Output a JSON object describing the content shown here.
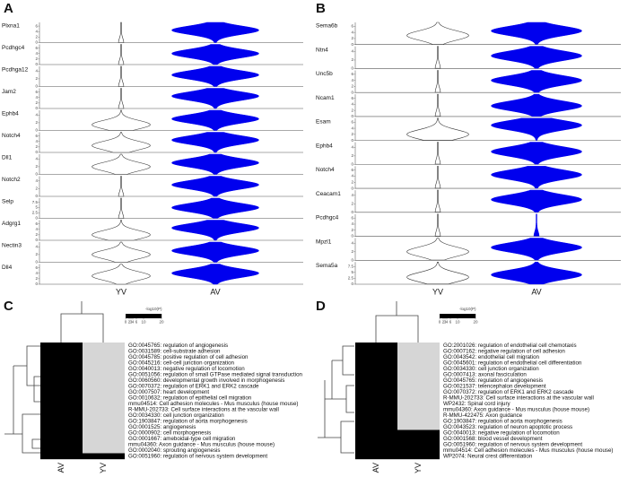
{
  "chart_data": [
    {
      "type": "violin",
      "panel": "A",
      "categories": [
        "YV",
        "AV"
      ],
      "colors": [
        "#ffffff",
        "#0000ee"
      ],
      "genes": [
        {
          "name": "Plxna1",
          "ylim": [
            0,
            7
          ],
          "yticks": [
            0,
            2,
            4,
            6
          ],
          "values": [
            0,
            4.5
          ]
        },
        {
          "name": "Pcdhgc4",
          "ylim": [
            0,
            7
          ],
          "yticks": [
            0,
            2,
            4,
            6
          ],
          "values": [
            0,
            4
          ]
        },
        {
          "name": "Pcdhga12",
          "ylim": [
            0,
            5
          ],
          "yticks": [
            0,
            2,
            4
          ],
          "values": [
            0,
            3
          ]
        },
        {
          "name": "Jam2",
          "ylim": [
            0,
            7
          ],
          "yticks": [
            0,
            2,
            4,
            6
          ],
          "values": [
            0,
            4.5
          ]
        },
        {
          "name": "Ephb4",
          "ylim": [
            0,
            5
          ],
          "yticks": [
            0,
            2,
            4
          ],
          "values": [
            1.5,
            3
          ]
        },
        {
          "name": "Notch4",
          "ylim": [
            0,
            7
          ],
          "yticks": [
            0,
            2,
            4,
            6
          ],
          "values": [
            2.5,
            4.5
          ]
        },
        {
          "name": "Dll1",
          "ylim": [
            0,
            5
          ],
          "yticks": [
            0,
            2,
            4
          ],
          "values": [
            2,
            3
          ]
        },
        {
          "name": "Notch2",
          "ylim": [
            0,
            5
          ],
          "yticks": [
            0,
            2,
            4
          ],
          "values": [
            0,
            3
          ]
        },
        {
          "name": "Selp",
          "ylim": [
            0,
            9
          ],
          "yticks": [
            0,
            2.5,
            5,
            7.5
          ],
          "values": [
            0,
            5
          ]
        },
        {
          "name": "Adgrg1",
          "ylim": [
            0,
            7
          ],
          "yticks": [
            0,
            2,
            4,
            6
          ],
          "values": [
            2,
            4.5
          ]
        },
        {
          "name": "Nectin3",
          "ylim": [
            0,
            5
          ],
          "yticks": [
            0,
            2,
            4
          ],
          "values": [
            2,
            3
          ]
        },
        {
          "name": "Dll4",
          "ylim": [
            0,
            7
          ],
          "yticks": [
            0,
            2,
            4,
            6
          ],
          "values": [
            3,
            4
          ]
        }
      ]
    },
    {
      "type": "violin",
      "panel": "B",
      "categories": [
        "YV",
        "AV"
      ],
      "colors": [
        "#ffffff",
        "#0000ee"
      ],
      "genes": [
        {
          "name": "Sema6b",
          "ylim": [
            0,
            7
          ],
          "yticks": [
            0,
            2,
            4,
            6
          ],
          "values": [
            3,
            4.5
          ]
        },
        {
          "name": "Ntn4",
          "ylim": [
            0,
            5
          ],
          "yticks": [
            0,
            2,
            4
          ],
          "values": [
            0,
            3
          ]
        },
        {
          "name": "Unc5b",
          "ylim": [
            0,
            7
          ],
          "yticks": [
            0,
            2,
            4,
            6
          ],
          "values": [
            0,
            4
          ]
        },
        {
          "name": "Ncam1",
          "ylim": [
            0,
            7
          ],
          "yticks": [
            0,
            2,
            4,
            6
          ],
          "values": [
            0,
            3.5
          ]
        },
        {
          "name": "Esam",
          "ylim": [
            0,
            7
          ],
          "yticks": [
            0,
            2,
            4,
            6
          ],
          "values": [
            2,
            5
          ]
        },
        {
          "name": "Ephb4",
          "ylim": [
            0,
            5
          ],
          "yticks": [
            0,
            2,
            4
          ],
          "values": [
            0,
            3
          ]
        },
        {
          "name": "Notch4",
          "ylim": [
            0,
            7
          ],
          "yticks": [
            0,
            2,
            4,
            6
          ],
          "values": [
            0,
            4.5
          ]
        },
        {
          "name": "Ceacam1",
          "ylim": [
            0,
            5
          ],
          "yticks": [
            0,
            2,
            4
          ],
          "values": [
            0,
            3
          ]
        },
        {
          "name": "Pcdhgc4",
          "ylim": [
            0,
            7
          ],
          "yticks": [
            0,
            2,
            4,
            6
          ],
          "values": [
            0,
            0
          ]
        },
        {
          "name": "Mpzl1",
          "ylim": [
            0,
            5
          ],
          "yticks": [
            0,
            2,
            4
          ],
          "values": [
            2,
            3
          ]
        },
        {
          "name": "Sema5a",
          "ylim": [
            0,
            9
          ],
          "yticks": [
            0,
            2.5,
            5,
            7.5
          ],
          "values": [
            3,
            4
          ]
        }
      ]
    },
    {
      "type": "heatmap",
      "panel": "C",
      "legend_title": "-log10(P)",
      "columns": [
        "AV",
        "YV"
      ],
      "clim": [
        0,
        20
      ],
      "cticks": [
        0,
        2,
        3,
        4,
        6,
        10,
        20
      ],
      "ccolors": [
        "#fffbe8",
        "#fbe7a6",
        "#f6cf72",
        "#f1b04f",
        "#e88d33",
        "#c65f1c",
        "#7a2a0a"
      ],
      "missing_color": "#d6d6d6",
      "rows": [
        "GO:0045765: regulation of angiogenesis",
        "GO:0031589: cell-substrate adhesion",
        "GO:0045785: positive regulation of cell adhesion",
        "GO:0045216: cell-cell junction organization",
        "GO:0040013: negative regulation of locomotion",
        "GO:0051056: regulation of small GTPase mediated signal transduction",
        "GO:0060560: developmental growth involved in morphogenesis",
        "GO:0070372: regulation of ERK1 and ERK2 cascade",
        "GO:0007507: heart development",
        "GO:0010632: regulation of epithelial cell migration",
        "mmu04514: Cell adhesion molecules - Mus musculus (house mouse)",
        "R-MMU-202733: Cell surface interactions at the vascular wall",
        "GO:0034330: cell junction organization",
        "GO:1903847: regulation of aorta morphogenesis",
        "GO:0001525: angiogenesis",
        "GO:0000902: cell morphogenesis",
        "GO:0001667: ameboidal-type cell migration",
        "mmu04360: Axon guidance - Mus musculus (house mouse)",
        "GO:0002040: sprouting angiogenesis",
        "GO:0051960: regulation of nervous system development"
      ],
      "values": [
        [
          12,
          null
        ],
        [
          10,
          null
        ],
        [
          8,
          null
        ],
        [
          8,
          null
        ],
        [
          7,
          null
        ],
        [
          7,
          null
        ],
        [
          6,
          null
        ],
        [
          7,
          null
        ],
        [
          6,
          null
        ],
        [
          5,
          null
        ],
        [
          15,
          null
        ],
        [
          14,
          null
        ],
        [
          12,
          null
        ],
        [
          8,
          null
        ],
        [
          16,
          null
        ],
        [
          14,
          null
        ],
        [
          12,
          null
        ],
        [
          10,
          null
        ],
        [
          9,
          null
        ],
        [
          8,
          2.5
        ]
      ]
    },
    {
      "type": "heatmap",
      "panel": "D",
      "legend_title": "-log10(P)",
      "columns": [
        "AV",
        "YV"
      ],
      "clim": [
        0,
        20
      ],
      "cticks": [
        0,
        2,
        3,
        4,
        6,
        10,
        20
      ],
      "ccolors": [
        "#fffbe8",
        "#fbe7a6",
        "#f6cf72",
        "#f1b04f",
        "#e88d33",
        "#c65f1c",
        "#7a2a0a"
      ],
      "missing_color": "#d6d6d6",
      "rows": [
        "GO:2001026: regulation of endothelial cell chemotaxis",
        "GO:0007162: negative regulation of cell adhesion",
        "GO:0043542: endothelial cell migration",
        "GO:0045601: regulation of endothelial cell differentiation",
        "GO:0034330: cell junction organization",
        "GO:0007413: axonal fasciculation",
        "GO:0045765: regulation of angiogenesis",
        "GO:0021537: telencephalon development",
        "GO:0070372: regulation of ERK1 and ERK2 cascade",
        "R-MMU-202733: Cell surface interactions at the vascular wall",
        "WP2432: Spinal cord injury",
        "mmu04360: Axon guidance - Mus musculus (house mouse)",
        "R-MMU-422475: Axon guidance",
        "GO:1903847: regulation of aorta morphogenesis",
        "GO:0043523: regulation of neuron apoptotic process",
        "GO:0040013: negative regulation of locomotion",
        "GO:0001568: blood vessel development",
        "GO:0051960: regulation of nervous system development",
        "mmu04514: Cell adhesion molecules - Mus musculus (house mouse)",
        "WP2074: Neural crest differentiation"
      ],
      "values": [
        [
          5,
          null
        ],
        [
          6,
          null
        ],
        [
          8,
          null
        ],
        [
          5,
          null
        ],
        [
          6,
          null
        ],
        [
          4,
          null
        ],
        [
          5,
          null
        ],
        [
          4,
          null
        ],
        [
          5,
          null
        ],
        [
          12,
          null
        ],
        [
          5,
          null
        ],
        [
          16,
          null
        ],
        [
          15,
          null
        ],
        [
          7,
          null
        ],
        [
          5,
          null
        ],
        [
          6,
          2.5
        ],
        [
          10,
          4
        ],
        [
          9,
          2
        ],
        [
          14,
          6
        ],
        [
          5,
          3
        ]
      ]
    }
  ]
}
